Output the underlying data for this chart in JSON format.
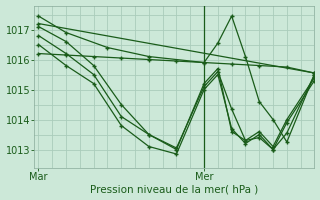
{
  "background_color": "#cce8d8",
  "grid_color": "#aaccbb",
  "line_color": "#1a5c1a",
  "marker": "+",
  "ylabel_ticks": [
    1013,
    1014,
    1015,
    1016,
    1017
  ],
  "xlabel_labels": [
    "Mar",
    "Mer"
  ],
  "xlabel_tick_pos": [
    0.0,
    12.0
  ],
  "xlabel": "Pression niveau de la mer( hPa )",
  "ylim": [
    1012.4,
    1017.8
  ],
  "xlim": [
    -0.3,
    20.0
  ],
  "vline_x": 12.0,
  "lines": [
    {
      "x": [
        0,
        2,
        5,
        8,
        12,
        13,
        14,
        15,
        16,
        17,
        18,
        20
      ],
      "y": [
        1017.45,
        1016.9,
        1016.4,
        1016.1,
        1015.9,
        1016.55,
        1017.45,
        1016.1,
        1014.6,
        1014.0,
        1013.25,
        1015.5
      ]
    },
    {
      "x": [
        0,
        2,
        4,
        6,
        8,
        10,
        12,
        13,
        14,
        15,
        16,
        17,
        18,
        20
      ],
      "y": [
        1017.1,
        1016.6,
        1015.8,
        1014.5,
        1013.5,
        1013.05,
        1015.1,
        1015.6,
        1014.35,
        1013.3,
        1013.4,
        1013.0,
        1013.55,
        1015.5
      ]
    },
    {
      "x": [
        0,
        2,
        4,
        6,
        8,
        10,
        12,
        13,
        14,
        15,
        16,
        17,
        18,
        20
      ],
      "y": [
        1016.8,
        1016.2,
        1015.5,
        1014.1,
        1013.5,
        1013.0,
        1015.2,
        1015.7,
        1013.6,
        1013.3,
        1013.6,
        1013.1,
        1014.0,
        1015.4
      ]
    },
    {
      "x": [
        0,
        2,
        4,
        6,
        8,
        10,
        12,
        13,
        14,
        15,
        16,
        17,
        18,
        20
      ],
      "y": [
        1016.5,
        1015.8,
        1015.2,
        1013.8,
        1013.1,
        1012.85,
        1015.0,
        1015.5,
        1013.7,
        1013.2,
        1013.5,
        1013.0,
        1013.9,
        1015.3
      ]
    },
    {
      "x": [
        0,
        2,
        4,
        6,
        8,
        10,
        12,
        14,
        16,
        18,
        20
      ],
      "y": [
        1016.2,
        1016.15,
        1016.1,
        1016.05,
        1016.0,
        1015.95,
        1015.9,
        1015.85,
        1015.8,
        1015.75,
        1015.55
      ]
    },
    {
      "x": [
        0,
        20
      ],
      "y": [
        1017.2,
        1015.55
      ]
    }
  ]
}
